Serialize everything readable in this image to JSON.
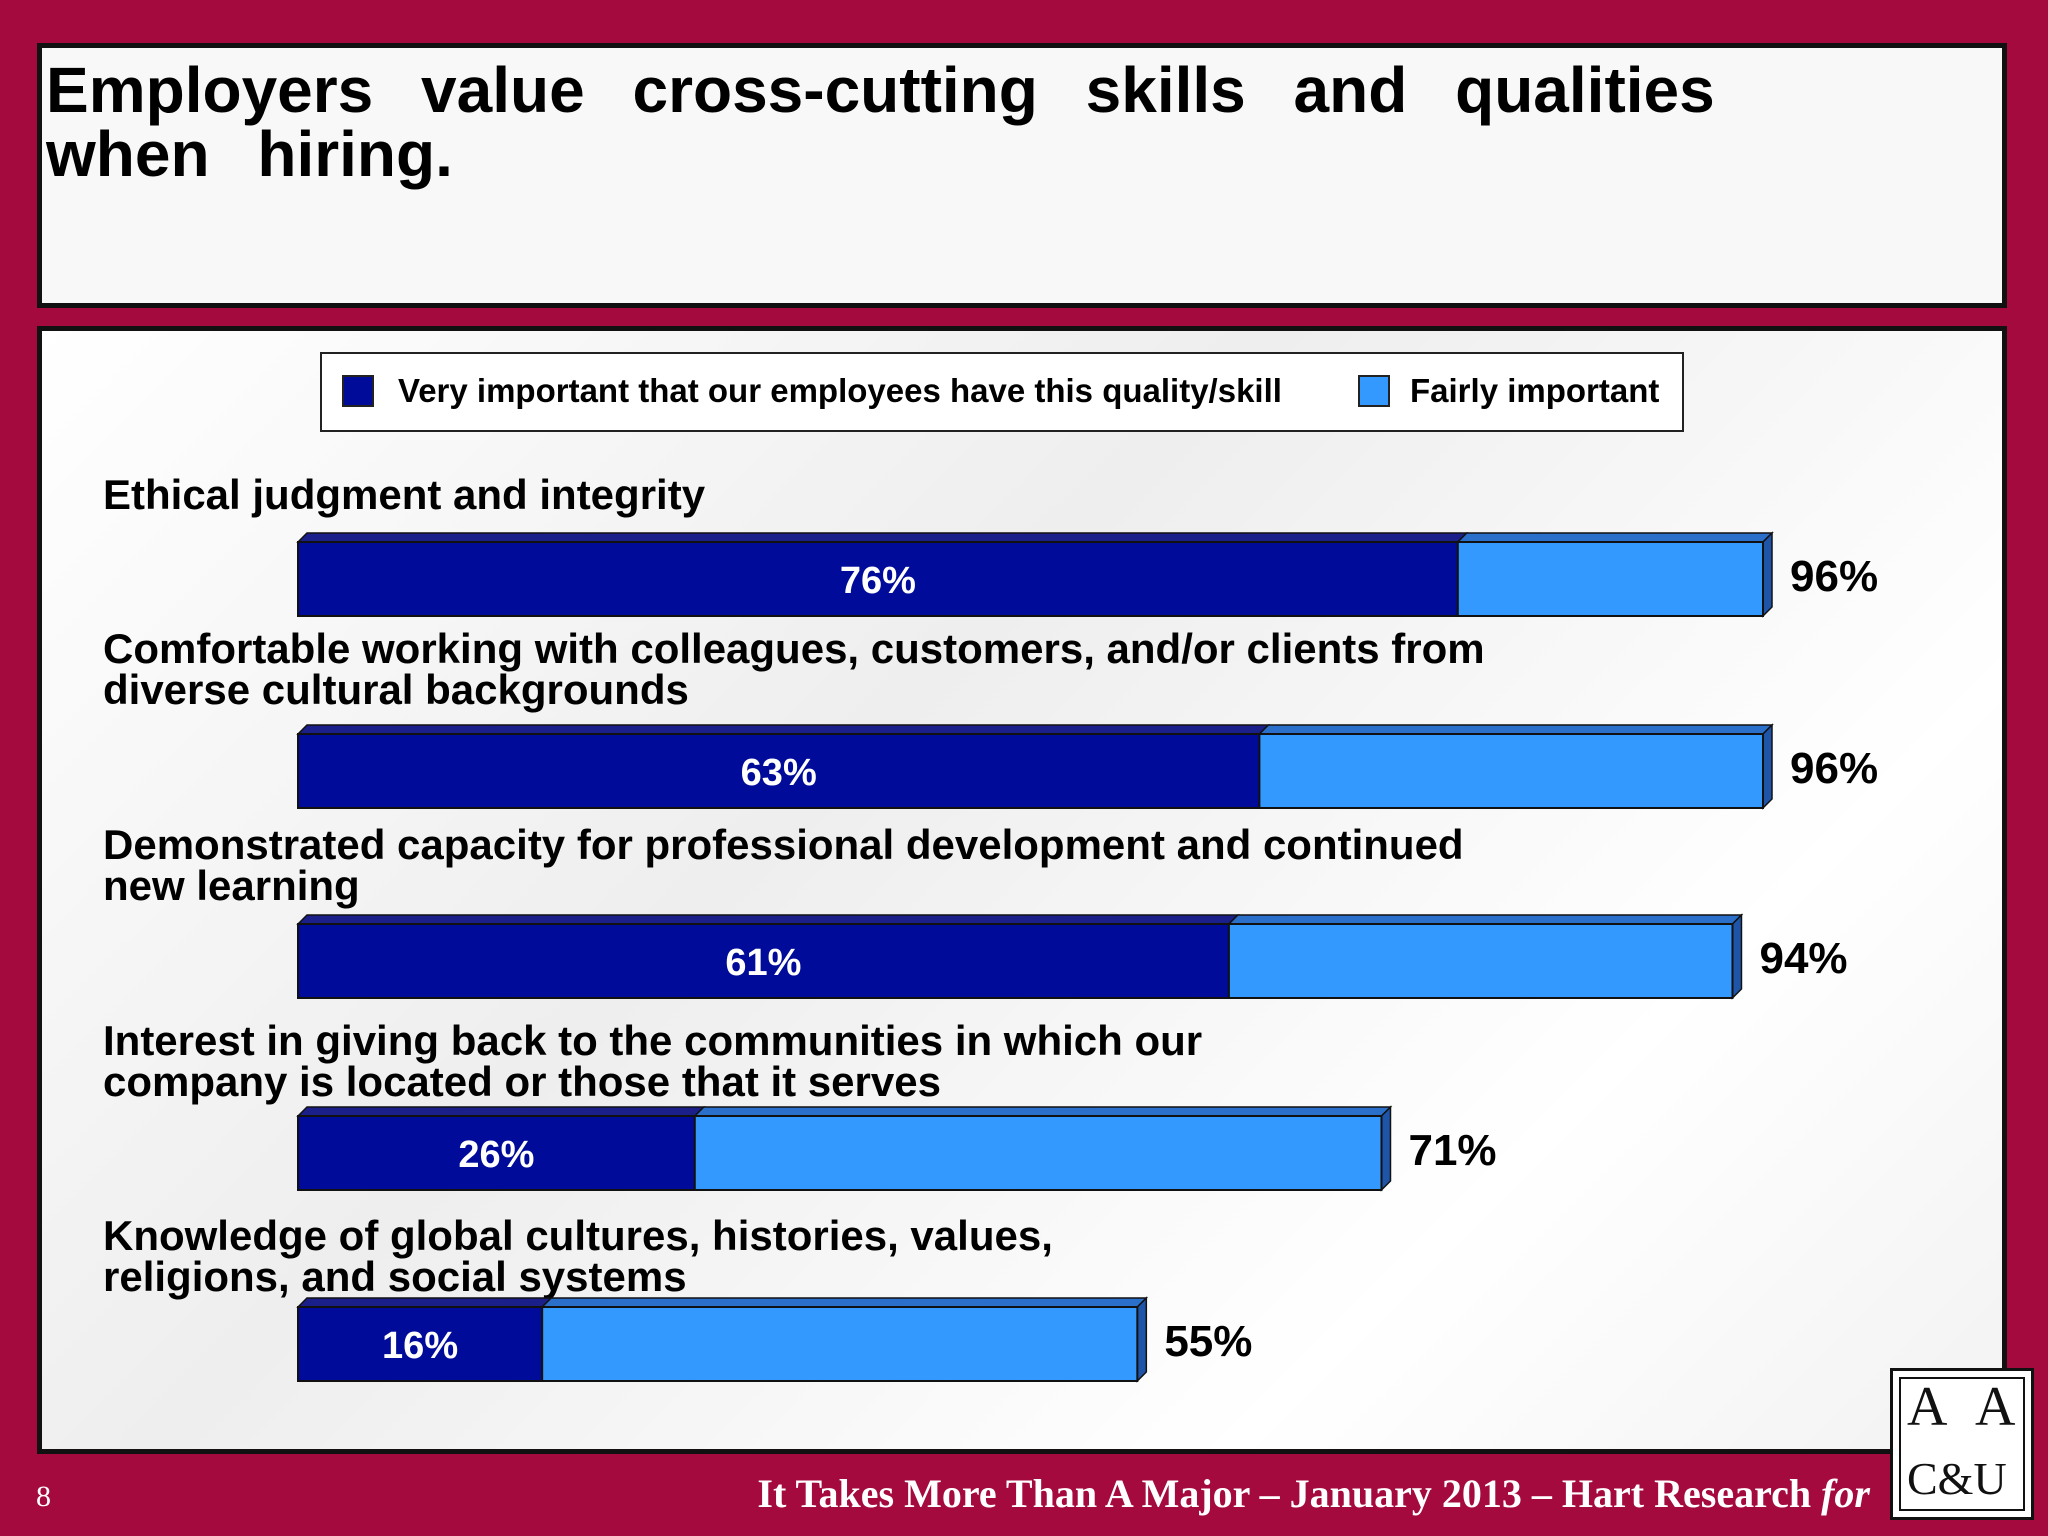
{
  "title": "Employers value cross-cutting skills and qualities when hiring.",
  "legend": {
    "very_label": "Very important that our employees have this quality/skill",
    "fairly_label": "Fairly important"
  },
  "colors": {
    "very_important": "#000c99",
    "fairly_important": "#3399ff",
    "background": "#a50a3e"
  },
  "chart_data": {
    "type": "bar",
    "orientation": "horizontal",
    "stacked": true,
    "categories": [
      [
        "Ethical judgment and integrity"
      ],
      [
        "Comfortable working with colleagues, customers, and/or clients from",
        "diverse cultural backgrounds"
      ],
      [
        "Demonstrated capacity for professional development and continued",
        "new learning"
      ],
      [
        "Interest in giving back to the communities in which our",
        "company is located or those that it serves"
      ],
      [
        "Knowledge of global cultures, histories, values,",
        "religions, and social systems"
      ]
    ],
    "series": [
      {
        "name": "Very important that our employees have this quality/skill",
        "values": [
          76,
          63,
          61,
          26,
          16
        ]
      },
      {
        "name": "Fairly important",
        "values": [
          20,
          33,
          33,
          45,
          39
        ]
      }
    ],
    "data_labels": [
      "76%",
      "63%",
      "61%",
      "26%",
      "16%"
    ],
    "total_labels": [
      "96%",
      "96%",
      "94%",
      "71%",
      "55%"
    ]
  },
  "footer": {
    "page_number": "8",
    "text": "It Takes More Than A Major – January 2013 – Hart Research",
    "text_for": "for"
  },
  "logo": {
    "letters": [
      "A",
      "A",
      "C&U"
    ]
  }
}
